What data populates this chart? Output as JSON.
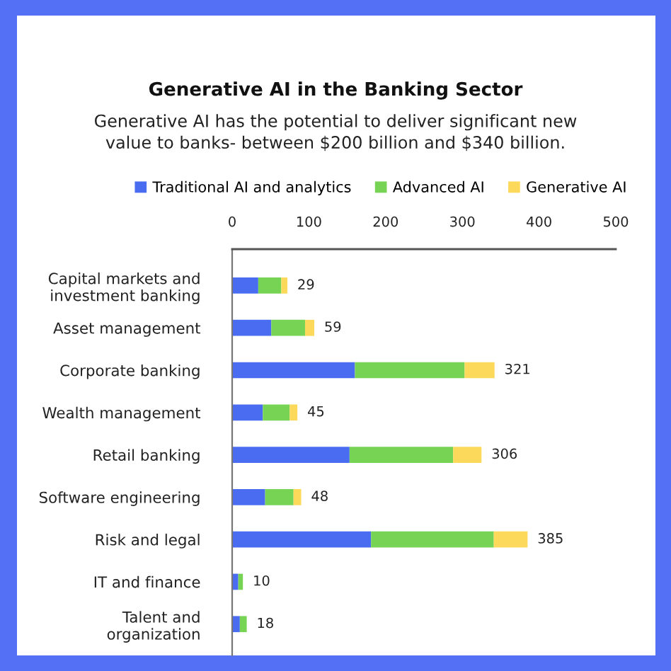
{
  "chart_data": {
    "type": "bar",
    "orientation": "horizontal",
    "stacked": true,
    "title": "Generative AI in the Banking Sector",
    "subtitle": "Generative AI has the potential to deliver significant new\nvalue to banks- between $200 billion and $340 billion.",
    "categories": [
      "Capital markets and\ninvestment banking",
      "Asset management",
      "Corporate banking",
      "Wealth management",
      "Retail banking",
      "Software engineering",
      "Risk and legal",
      "IT and finance",
      "Talent and\norganization"
    ],
    "series": [
      {
        "name": "Traditional AI and analytics",
        "color": "#4a6cf0",
        "values": [
          34,
          51,
          160,
          40,
          153,
          43,
          181,
          8,
          10
        ]
      },
      {
        "name": "Advanced AI",
        "color": "#77d353",
        "values": [
          30,
          44,
          143,
          35,
          135,
          37,
          160,
          6,
          9
        ]
      },
      {
        "name": "Generative AI",
        "color": "#fcd95a",
        "values": [
          8,
          12,
          39,
          10,
          37,
          10,
          44,
          null,
          null
        ]
      }
    ],
    "xlim": [
      0,
      500
    ],
    "xticks": [
      0,
      100,
      200,
      300,
      400,
      500
    ],
    "annotations": [
      {
        "text": "29",
        "x": 72,
        "y": "Capital markets and\ninvestment banking"
      },
      {
        "text": "59",
        "x": 107,
        "y": "Asset management"
      },
      {
        "text": "321",
        "x": 342,
        "y": "Corporate banking"
      },
      {
        "text": "45",
        "x": 85,
        "y": "Wealth management"
      },
      {
        "text": "306",
        "x": 325,
        "y": "Retail banking"
      },
      {
        "text": "48",
        "x": 90,
        "y": "Software engineering"
      },
      {
        "text": "385",
        "x": 385,
        "y": "Risk and legal"
      },
      {
        "text": "10",
        "x": 14,
        "y": "IT and finance"
      },
      {
        "text": "18",
        "x": 19,
        "y": "Talent and\norganization"
      }
    ],
    "legend": "top",
    "grid": false
  }
}
